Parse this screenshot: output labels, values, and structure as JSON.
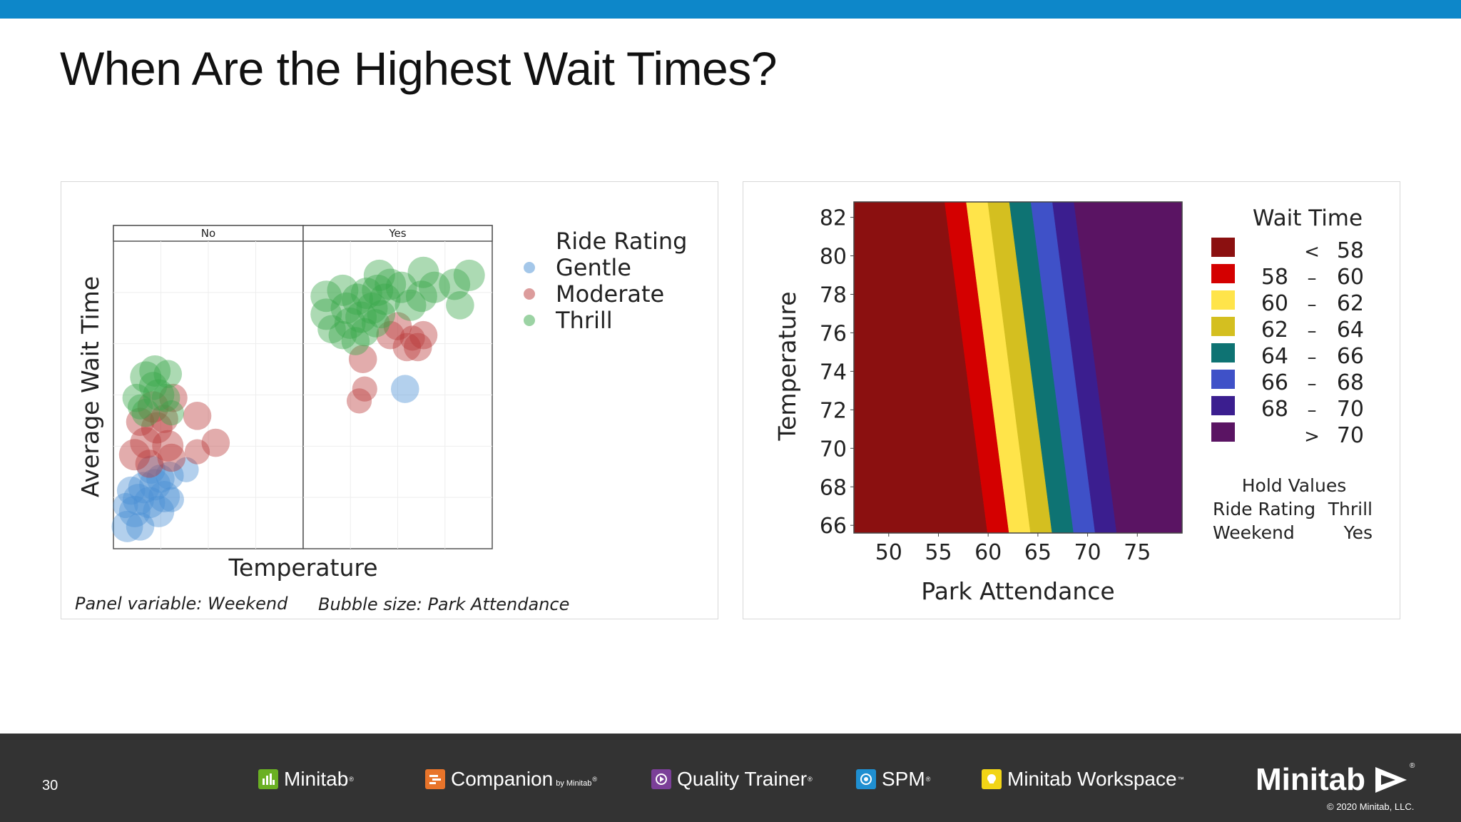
{
  "slide": {
    "title": "When Are the Highest Wait Times?",
    "page_number": "30",
    "colors": {
      "top_bar": "#0d87c9",
      "footer": "#333333"
    }
  },
  "footer": {
    "products": [
      {
        "name": "Minitab",
        "mark": "®",
        "icon": "minitab-bar-chart-icon",
        "color": "#6ab023"
      },
      {
        "name": "Companion",
        "sub": "by Minitab",
        "mark": "®",
        "icon": "companion-icon",
        "color": "#e8742a"
      },
      {
        "name": "Quality Trainer",
        "mark": "®",
        "icon": "quality-trainer-icon",
        "color": "#7b3f98"
      },
      {
        "name": "SPM",
        "mark": "®",
        "icon": "spm-icon",
        "color": "#1f8fd1"
      },
      {
        "name": "Minitab Workspace",
        "mark": "™",
        "icon": "workspace-icon",
        "color": "#f2d516"
      }
    ],
    "brand": "Minitab",
    "brand_mark": "®",
    "copyright": "© 2020 Minitab, LLC."
  },
  "chart_data": [
    {
      "type": "scatter",
      "subtype": "bubble-panel",
      "panels": [
        "No",
        "Yes"
      ],
      "xlabel": "Temperature",
      "ylabel": "Average Wait Time",
      "xlim": [
        0,
        10
      ],
      "ylim": [
        0,
        10
      ],
      "grid": true,
      "legend_title": "Ride Rating",
      "legend_position": "right",
      "footnote_left": "Panel variable: Weekend",
      "footnote_right": "Bubble size: Park Attendance",
      "series": [
        {
          "name": "Gentle",
          "color": "#4a8fd4",
          "points": [
            {
              "panel": "No",
              "x": 0.6,
              "y": 0.6,
              "s": 1.0
            },
            {
              "panel": "No",
              "x": 1.0,
              "y": 1.1,
              "s": 1.0
            },
            {
              "panel": "No",
              "x": 1.3,
              "y": 0.6,
              "s": 0.9
            },
            {
              "panel": "No",
              "x": 1.8,
              "y": 1.4,
              "s": 1.0
            },
            {
              "panel": "No",
              "x": 2.3,
              "y": 1.1,
              "s": 1.0
            },
            {
              "panel": "No",
              "x": 2.6,
              "y": 1.6,
              "s": 1.0
            },
            {
              "panel": "No",
              "x": 0.8,
              "y": 1.8,
              "s": 0.9
            },
            {
              "panel": "No",
              "x": 1.5,
              "y": 1.9,
              "s": 1.0
            },
            {
              "panel": "No",
              "x": 2.1,
              "y": 2.0,
              "s": 1.0
            },
            {
              "panel": "No",
              "x": 1.2,
              "y": 1.5,
              "s": 1.0
            },
            {
              "panel": "No",
              "x": 2.9,
              "y": 2.3,
              "s": 0.9
            },
            {
              "panel": "No",
              "x": 3.0,
              "y": 1.5,
              "s": 0.8
            },
            {
              "panel": "No",
              "x": 1.9,
              "y": 2.5,
              "s": 0.9
            },
            {
              "panel": "No",
              "x": 0.5,
              "y": 1.3,
              "s": 0.8
            },
            {
              "panel": "No",
              "x": 2.4,
              "y": 2.2,
              "s": 0.9
            },
            {
              "panel": "No",
              "x": 3.8,
              "y": 2.5,
              "s": 0.8
            },
            {
              "panel": "Yes",
              "x": 5.4,
              "y": 5.2,
              "s": 0.9
            }
          ]
        },
        {
          "name": "Moderate",
          "color": "#b93a3a",
          "points": [
            {
              "panel": "No",
              "x": 1.0,
              "y": 3.0,
              "s": 1.0
            },
            {
              "panel": "No",
              "x": 1.6,
              "y": 3.4,
              "s": 1.0
            },
            {
              "panel": "No",
              "x": 2.2,
              "y": 3.9,
              "s": 1.0
            },
            {
              "panel": "No",
              "x": 2.8,
              "y": 3.3,
              "s": 1.0
            },
            {
              "panel": "No",
              "x": 1.3,
              "y": 4.1,
              "s": 0.9
            },
            {
              "panel": "No",
              "x": 2.0,
              "y": 4.6,
              "s": 1.0
            },
            {
              "panel": "No",
              "x": 3.1,
              "y": 4.9,
              "s": 0.9
            },
            {
              "panel": "No",
              "x": 1.8,
              "y": 2.7,
              "s": 0.9
            },
            {
              "panel": "No",
              "x": 3.0,
              "y": 2.9,
              "s": 0.9
            },
            {
              "panel": "No",
              "x": 4.4,
              "y": 4.3,
              "s": 0.9
            },
            {
              "panel": "No",
              "x": 4.4,
              "y": 3.1,
              "s": 0.8
            },
            {
              "panel": "No",
              "x": 5.4,
              "y": 3.4,
              "s": 0.9
            },
            {
              "panel": "No",
              "x": 2.6,
              "y": 4.2,
              "s": 0.9
            },
            {
              "panel": "Yes",
              "x": 3.1,
              "y": 6.2,
              "s": 0.9
            },
            {
              "panel": "Yes",
              "x": 3.2,
              "y": 5.2,
              "s": 0.8
            },
            {
              "panel": "Yes",
              "x": 2.9,
              "y": 4.8,
              "s": 0.8
            },
            {
              "panel": "Yes",
              "x": 4.6,
              "y": 7.0,
              "s": 0.9
            },
            {
              "panel": "Yes",
              "x": 5.5,
              "y": 6.6,
              "s": 0.9
            },
            {
              "panel": "Yes",
              "x": 6.1,
              "y": 6.6,
              "s": 0.9
            },
            {
              "panel": "Yes",
              "x": 6.4,
              "y": 7.0,
              "s": 0.9
            },
            {
              "panel": "Yes",
              "x": 5.0,
              "y": 7.3,
              "s": 0.9
            },
            {
              "panel": "Yes",
              "x": 5.8,
              "y": 6.9,
              "s": 0.8
            }
          ]
        },
        {
          "name": "Thrill",
          "color": "#3aa84a",
          "points": [
            {
              "panel": "No",
              "x": 1.1,
              "y": 4.9,
              "s": 0.9
            },
            {
              "panel": "No",
              "x": 1.6,
              "y": 4.4,
              "s": 0.9
            },
            {
              "panel": "No",
              "x": 2.3,
              "y": 5.0,
              "s": 1.0
            },
            {
              "panel": "No",
              "x": 1.6,
              "y": 5.6,
              "s": 1.0
            },
            {
              "panel": "No",
              "x": 2.1,
              "y": 5.8,
              "s": 1.0
            },
            {
              "panel": "No",
              "x": 2.8,
              "y": 5.7,
              "s": 0.9
            },
            {
              "panel": "No",
              "x": 2.7,
              "y": 4.9,
              "s": 0.9
            },
            {
              "panel": "No",
              "x": 3.0,
              "y": 4.4,
              "s": 0.8
            },
            {
              "panel": "No",
              "x": 2.0,
              "y": 5.3,
              "s": 0.9
            },
            {
              "panel": "No",
              "x": 1.3,
              "y": 4.6,
              "s": 0.8
            },
            {
              "panel": "Yes",
              "x": 1.1,
              "y": 8.3,
              "s": 1.0
            },
            {
              "panel": "Yes",
              "x": 1.1,
              "y": 7.7,
              "s": 1.0
            },
            {
              "panel": "Yes",
              "x": 1.4,
              "y": 7.2,
              "s": 0.9
            },
            {
              "panel": "Yes",
              "x": 2.0,
              "y": 8.5,
              "s": 1.0
            },
            {
              "panel": "Yes",
              "x": 2.2,
              "y": 7.9,
              "s": 1.0
            },
            {
              "panel": "Yes",
              "x": 2.4,
              "y": 7.4,
              "s": 1.0
            },
            {
              "panel": "Yes",
              "x": 2.8,
              "y": 8.2,
              "s": 1.0
            },
            {
              "panel": "Yes",
              "x": 3.0,
              "y": 7.6,
              "s": 1.0
            },
            {
              "panel": "Yes",
              "x": 3.3,
              "y": 8.4,
              "s": 1.0
            },
            {
              "panel": "Yes",
              "x": 3.6,
              "y": 7.9,
              "s": 1.0
            },
            {
              "panel": "Yes",
              "x": 3.9,
              "y": 8.5,
              "s": 1.0
            },
            {
              "panel": "Yes",
              "x": 4.3,
              "y": 8.2,
              "s": 1.0
            },
            {
              "panel": "Yes",
              "x": 4.6,
              "y": 8.7,
              "s": 1.0
            },
            {
              "panel": "Yes",
              "x": 3.2,
              "y": 7.1,
              "s": 0.9
            },
            {
              "panel": "Yes",
              "x": 2.7,
              "y": 6.8,
              "s": 0.9
            },
            {
              "panel": "Yes",
              "x": 3.8,
              "y": 7.4,
              "s": 0.9
            },
            {
              "panel": "Yes",
              "x": 4.1,
              "y": 7.7,
              "s": 0.9
            },
            {
              "panel": "Yes",
              "x": 6.3,
              "y": 8.3,
              "s": 1.0
            },
            {
              "panel": "Yes",
              "x": 7.0,
              "y": 8.6,
              "s": 1.0
            },
            {
              "panel": "Yes",
              "x": 8.1,
              "y": 8.7,
              "s": 1.0
            },
            {
              "panel": "Yes",
              "x": 8.9,
              "y": 9.0,
              "s": 1.0
            },
            {
              "panel": "Yes",
              "x": 8.4,
              "y": 8.0,
              "s": 0.9
            },
            {
              "panel": "Yes",
              "x": 5.7,
              "y": 8.0,
              "s": 1.0
            },
            {
              "panel": "Yes",
              "x": 4.0,
              "y": 9.0,
              "s": 1.0
            },
            {
              "panel": "Yes",
              "x": 6.4,
              "y": 9.1,
              "s": 1.0
            },
            {
              "panel": "Yes",
              "x": 2.0,
              "y": 7.0,
              "s": 0.9
            },
            {
              "panel": "Yes",
              "x": 5.2,
              "y": 8.6,
              "s": 1.0
            }
          ]
        }
      ]
    },
    {
      "type": "heatmap",
      "subtype": "contour",
      "title": "Wait Time",
      "xlabel": "Park Attendance",
      "ylabel": "Temperature",
      "xlim": [
        46.5,
        79.5
      ],
      "ylim": [
        65.6,
        82.8
      ],
      "xticks": [
        50,
        55,
        60,
        65,
        70,
        75
      ],
      "yticks": [
        66,
        68,
        70,
        72,
        74,
        76,
        78,
        80,
        82
      ],
      "contour_model": "level = 60 + (attendance - 60) * 0.9235 + (temperature - 74) * 0.2309",
      "levels": [
        58,
        60,
        62,
        64,
        66,
        68,
        70
      ],
      "bands": [
        {
          "label_op": "<",
          "low": "",
          "high": "58",
          "color": "#8b1010"
        },
        {
          "label_op": "–",
          "low": "58",
          "high": "60",
          "color": "#d40000"
        },
        {
          "label_op": "–",
          "low": "60",
          "high": "62",
          "color": "#ffe44a"
        },
        {
          "label_op": "–",
          "low": "62",
          "high": "64",
          "color": "#d4bf20"
        },
        {
          "label_op": "–",
          "low": "64",
          "high": "66",
          "color": "#0e7373"
        },
        {
          "label_op": "–",
          "low": "66",
          "high": "68",
          "color": "#3f51c8"
        },
        {
          "label_op": "–",
          "low": "68",
          "high": "70",
          "color": "#3b1e8f"
        },
        {
          "label_op": ">",
          "low": "",
          "high": "70",
          "color": "#5a1463"
        }
      ],
      "hold_values": {
        "title": "Hold Values",
        "rows": [
          {
            "name": "Ride Rating",
            "value": "Thrill"
          },
          {
            "name": "Weekend",
            "value": "Yes"
          }
        ]
      },
      "legend_position": "right"
    }
  ]
}
